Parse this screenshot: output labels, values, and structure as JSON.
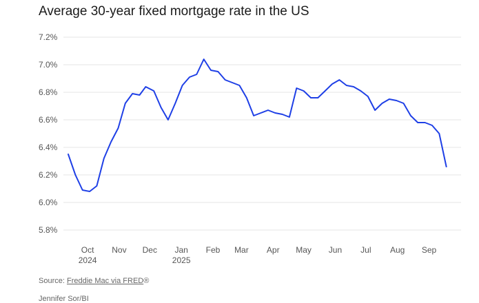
{
  "title": "Average 30-year fixed mortgage rate in the US",
  "source": {
    "prefix": "Source: ",
    "link": "Freddie Mac via FRED",
    "suffix": "®"
  },
  "credit": "Jennifer Sor/BI",
  "colors": {
    "line": "#1e3fe6",
    "grid": "#e4e4e4",
    "axis_text": "#555555"
  },
  "chart_data": {
    "type": "line",
    "title": "Average 30-year fixed mortgage rate in the US",
    "xlabel": "",
    "ylabel": "",
    "ylim": [
      5.8,
      7.2
    ],
    "yticks": [
      5.8,
      6.0,
      6.2,
      6.4,
      6.6,
      6.8,
      7.0,
      7.2
    ],
    "ytick_labels": [
      "5.8%",
      "6.0%",
      "6.2%",
      "6.4%",
      "6.6%",
      "6.8%",
      "7.0%",
      "7.2%"
    ],
    "xlim": [
      "2024-09-12",
      "2025-09-25"
    ],
    "xticks": [
      {
        "date": "2024-10-01",
        "label": "Oct",
        "sublabel": "2024"
      },
      {
        "date": "2024-11-01",
        "label": "Nov",
        "sublabel": ""
      },
      {
        "date": "2024-12-01",
        "label": "Dec",
        "sublabel": ""
      },
      {
        "date": "2025-01-01",
        "label": "Jan",
        "sublabel": "2025"
      },
      {
        "date": "2025-02-01",
        "label": "Feb",
        "sublabel": ""
      },
      {
        "date": "2025-03-01",
        "label": "Mar",
        "sublabel": ""
      },
      {
        "date": "2025-04-01",
        "label": "Apr",
        "sublabel": ""
      },
      {
        "date": "2025-05-01",
        "label": "May",
        "sublabel": ""
      },
      {
        "date": "2025-06-01",
        "label": "Jun",
        "sublabel": ""
      },
      {
        "date": "2025-07-01",
        "label": "Jul",
        "sublabel": ""
      },
      {
        "date": "2025-08-01",
        "label": "Aug",
        "sublabel": ""
      },
      {
        "date": "2025-09-01",
        "label": "Sep",
        "sublabel": ""
      }
    ],
    "grid": true,
    "series": [
      {
        "x": [
          "2024-09-12",
          "2024-09-19",
          "2024-09-26",
          "2024-10-03",
          "2024-10-10",
          "2024-10-17",
          "2024-10-24",
          "2024-10-31",
          "2024-11-07",
          "2024-11-14",
          "2024-11-21",
          "2024-11-27",
          "2024-12-05",
          "2024-12-12",
          "2024-12-19",
          "2024-12-26",
          "2025-01-02",
          "2025-01-09",
          "2025-01-16",
          "2025-01-23",
          "2025-01-30",
          "2025-02-06",
          "2025-02-13",
          "2025-02-20",
          "2025-02-27",
          "2025-03-06",
          "2025-03-13",
          "2025-03-20",
          "2025-03-27",
          "2025-04-03",
          "2025-04-10",
          "2025-04-17",
          "2025-04-24",
          "2025-05-01",
          "2025-05-08",
          "2025-05-15",
          "2025-05-22",
          "2025-05-29",
          "2025-06-05",
          "2025-06-12",
          "2025-06-19",
          "2025-06-26",
          "2025-07-03",
          "2025-07-10",
          "2025-07-17",
          "2025-07-24",
          "2025-07-31",
          "2025-08-07",
          "2025-08-14",
          "2025-08-21",
          "2025-08-28",
          "2025-09-04",
          "2025-09-11",
          "2025-09-18"
        ],
        "values": [
          6.35,
          6.2,
          6.09,
          6.08,
          6.12,
          6.32,
          6.44,
          6.54,
          6.72,
          6.79,
          6.78,
          6.84,
          6.81,
          6.69,
          6.6,
          6.72,
          6.85,
          6.91,
          6.93,
          7.04,
          6.96,
          6.95,
          6.89,
          6.87,
          6.85,
          6.76,
          6.63,
          6.65,
          6.67,
          6.65,
          6.64,
          6.62,
          6.83,
          6.81,
          6.76,
          6.76,
          6.81,
          6.86,
          6.89,
          6.85,
          6.84,
          6.81,
          6.77,
          6.67,
          6.72,
          6.75,
          6.74,
          6.72,
          6.63,
          6.58,
          6.58,
          6.56,
          6.5,
          6.26
        ]
      }
    ]
  }
}
